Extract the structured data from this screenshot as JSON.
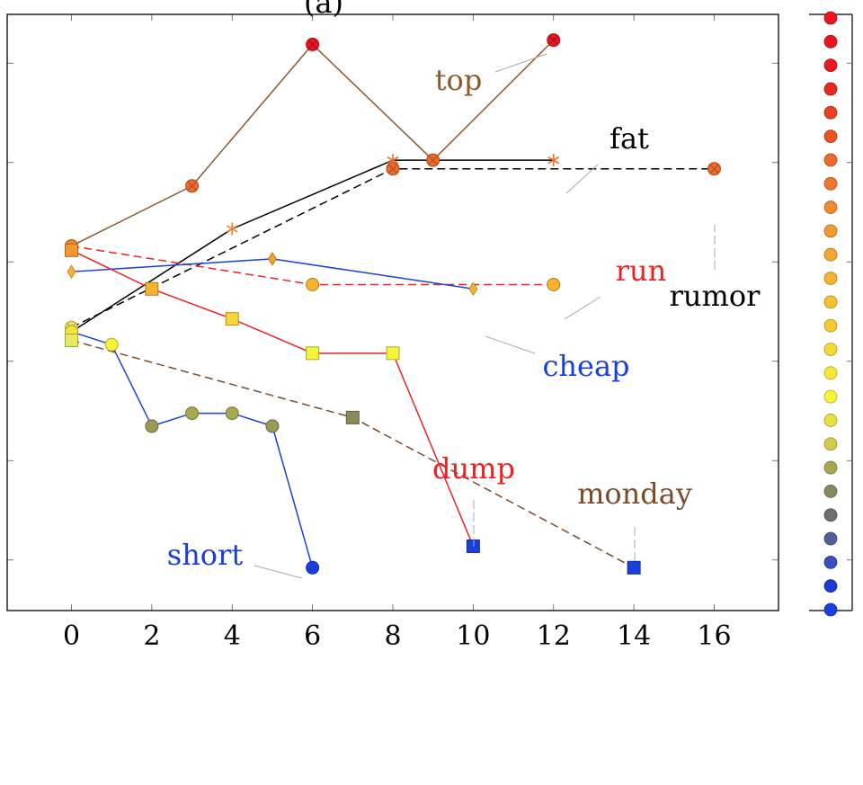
{
  "chart_data": {
    "type": "line",
    "title": "(a)",
    "xlabel": "",
    "ylabel": "",
    "xlim": [
      -1.6,
      17.6
    ],
    "ylim": [
      -0.25,
      1.14
    ],
    "xticks": [
      0,
      2,
      4,
      6,
      8,
      10,
      12,
      14,
      16
    ],
    "xtick_labels": [
      "0",
      "2",
      "4",
      "6",
      "8",
      "10",
      "12",
      "14",
      "16"
    ],
    "ytick_count": 6,
    "grid": false,
    "legend": "none",
    "series": [
      {
        "name": "top",
        "color": "#8b5a2b",
        "dash": "none",
        "marker": "circle-x",
        "x": [
          0,
          3,
          6,
          9,
          12
        ],
        "y": [
          0.6,
          0.74,
          1.07,
          0.8,
          1.08
        ],
        "marker_colors": [
          "#f0832a",
          "#ef6a2a",
          "#e81620",
          "#ef6a2a",
          "#e81620"
        ]
      },
      {
        "name": "fat",
        "color": "#000000",
        "dash": "none",
        "marker": "star",
        "x": [
          0,
          4,
          8,
          12
        ],
        "y": [
          0.4,
          0.64,
          0.8,
          0.8
        ],
        "marker_colors": [
          "#e8e860",
          "#f0832a",
          "#ef6a2a",
          "#ef6a2a"
        ]
      },
      {
        "name": "rumor",
        "color": "#000000",
        "dash": "dashed",
        "marker": "circle-x",
        "x": [
          0,
          8,
          16
        ],
        "y": [
          0.41,
          0.78,
          0.78
        ],
        "marker_colors": [
          "#e8e860",
          "#ef6a2a",
          "#ef6a2a"
        ]
      },
      {
        "name": "run",
        "color": "#ee2222",
        "dash": "dashed",
        "marker": "circle",
        "x": [
          0,
          6,
          12
        ],
        "y": [
          0.6,
          0.51,
          0.51
        ],
        "marker_colors": [
          "#f0832a",
          "#f5b32f",
          "#f5b32f"
        ]
      },
      {
        "name": "cheap",
        "color": "#1a3fdd",
        "dash": "none",
        "marker": "diamond",
        "x": [
          0,
          5,
          10
        ],
        "y": [
          0.54,
          0.57,
          0.5
        ],
        "marker_colors": [
          "#f5b32f",
          "#f0a030",
          "#f5b32f"
        ]
      },
      {
        "name": "dump",
        "color": "#ee2222",
        "dash": "none",
        "marker": "square",
        "x": [
          0,
          2,
          4,
          6,
          8,
          10
        ],
        "y": [
          0.59,
          0.5,
          0.43,
          0.35,
          0.35,
          -0.1
        ],
        "marker_colors": [
          "#f5962f",
          "#f5b32f",
          "#f5d53a",
          "#f7f23a",
          "#f7f23a",
          "#1a3fdd"
        ]
      },
      {
        "name": "short",
        "color": "#1a3fdd",
        "dash": "none",
        "marker": "circle",
        "x": [
          0,
          1,
          2,
          3,
          4,
          5,
          6
        ],
        "y": [
          0.4,
          0.37,
          0.18,
          0.21,
          0.21,
          0.18,
          -0.15
        ],
        "marker_colors": [
          "#f5e23a",
          "#f7f23a",
          "#9a9a55",
          "#a8a850",
          "#a8a850",
          "#9a9a55",
          "#1a3fdd"
        ]
      },
      {
        "name": "monday",
        "color": "#7a4b28",
        "dash": "dashed",
        "marker": "square",
        "x": [
          0,
          7,
          14
        ],
        "y": [
          0.38,
          0.2,
          -0.15
        ],
        "marker_colors": [
          "#e8e860",
          "#8a8a5a",
          "#1a3fdd"
        ]
      }
    ],
    "annotations": [
      {
        "text": "top",
        "color": "#8b5a2b",
        "series": "top"
      },
      {
        "text": "fat",
        "color": "#000000",
        "series": "fat"
      },
      {
        "text": "rumor",
        "color": "#000000",
        "series": "rumor"
      },
      {
        "text": "run",
        "color": "#ee2222",
        "series": "run"
      },
      {
        "text": "cheap",
        "color": "#1a3fdd",
        "series": "cheap"
      },
      {
        "text": "dump",
        "color": "#ee2222",
        "series": "dump"
      },
      {
        "text": "short",
        "color": "#1a3fdd",
        "series": "short"
      },
      {
        "text": "monday",
        "color": "#7a4b28",
        "series": "monday"
      }
    ],
    "colorbar": {
      "ticks": 6,
      "colors": [
        "#e81620",
        "#e81620",
        "#e81a20",
        "#e8281f",
        "#eb3f22",
        "#ed5224",
        "#ef6a2a",
        "#f0762b",
        "#f08a2e",
        "#f19a2f",
        "#f2a630",
        "#f4b230",
        "#f5bf30",
        "#f5cc30",
        "#f5d834",
        "#f7e838",
        "#f7f23a",
        "#e8e040",
        "#d0cc48",
        "#a8a850",
        "#888860",
        "#6e6e70",
        "#525e9a",
        "#3a4cc0",
        "#1c3ad8",
        "#1a3fdd"
      ]
    }
  }
}
